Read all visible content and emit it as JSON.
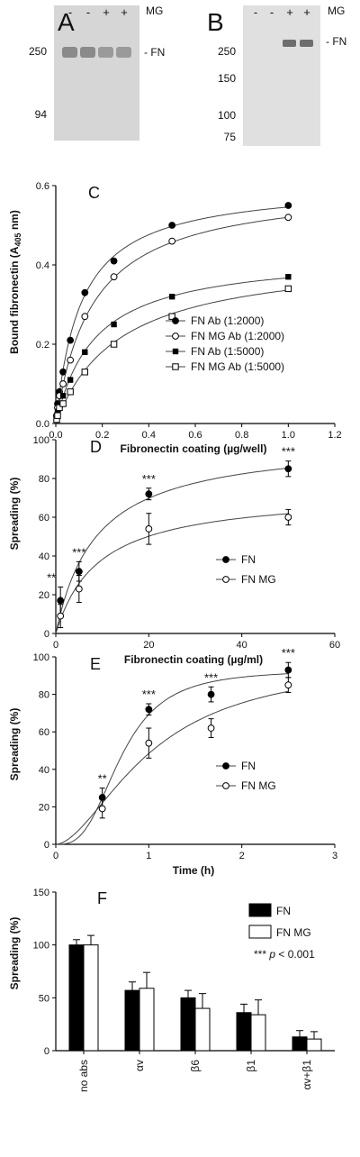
{
  "gels": [
    {
      "panel": "A",
      "lanes": [
        "-",
        "-",
        "+",
        "+"
      ],
      "lane_header": "MG",
      "markers": [
        "250",
        "94"
      ],
      "band_label": "- FN"
    },
    {
      "panel": "B",
      "lanes": [
        "-",
        "-",
        "+",
        "+"
      ],
      "lane_header": "MG",
      "markers": [
        "250",
        "150",
        "100",
        "75"
      ],
      "band_label": "- FN"
    }
  ],
  "chart_data": [
    {
      "panel": "C",
      "type": "line",
      "xlabel": "Fibronectin coating (µg/well)",
      "ylabel_main": "Bound fibronectin (A",
      "ylabel_sub": "405",
      "ylabel_end": " nm)",
      "xlim": [
        0,
        1.2
      ],
      "ylim": [
        0,
        0.6
      ],
      "xticks": [
        "0.0",
        "0.2",
        "0.4",
        "0.6",
        "0.8",
        "1.0",
        "1.2"
      ],
      "yticks": [
        "0.0",
        "0.2",
        "0.4",
        "0.6"
      ],
      "x": [
        0.0039,
        0.0078,
        0.0156,
        0.03125,
        0.0625,
        0.125,
        0.25,
        0.5,
        1.0
      ],
      "series": [
        {
          "name": "FN Ab (1:2000)",
          "marker": "filled-circle",
          "values": [
            0.02,
            0.05,
            0.08,
            0.13,
            0.21,
            0.33,
            0.41,
            0.5,
            0.55
          ]
        },
        {
          "name": "FN MG Ab (1:2000)",
          "marker": "open-circle",
          "values": [
            0.02,
            0.04,
            0.07,
            0.1,
            0.16,
            0.27,
            0.37,
            0.46,
            0.52
          ]
        },
        {
          "name": "FN Ab (1:5000)",
          "marker": "filled-square",
          "values": [
            0.01,
            0.03,
            0.05,
            0.07,
            0.11,
            0.18,
            0.25,
            0.32,
            0.37
          ]
        },
        {
          "name": "FN MG Ab (1:5000)",
          "marker": "open-square",
          "values": [
            0.01,
            0.02,
            0.04,
            0.05,
            0.08,
            0.13,
            0.2,
            0.27,
            0.34
          ]
        }
      ],
      "legend_position": "lower-right"
    },
    {
      "panel": "D",
      "type": "line",
      "xlabel": "Fibronectin coating (µg/ml)",
      "ylabel": "Spreading (%)",
      "xlim": [
        0,
        60
      ],
      "ylim": [
        0,
        100
      ],
      "xticks": [
        "0",
        "20",
        "40",
        "60"
      ],
      "yticks": [
        "0",
        "20",
        "40",
        "60",
        "80",
        "100"
      ],
      "x": [
        1,
        5,
        20,
        50
      ],
      "series": [
        {
          "name": "FN",
          "marker": "filled-circle",
          "values": [
            17,
            32,
            72,
            85
          ],
          "errors": [
            7,
            5,
            3,
            4
          ]
        },
        {
          "name": "FN MG",
          "marker": "open-circle",
          "values": [
            9,
            23,
            54,
            60
          ],
          "errors": [
            6,
            7,
            8,
            4
          ]
        }
      ],
      "annotations": [
        "**",
        "***",
        "***",
        "***"
      ],
      "legend_position": "lower-right"
    },
    {
      "panel": "E",
      "type": "line",
      "xlabel": "Time (h)",
      "ylabel": "Spreading (%)",
      "xlim": [
        0,
        3
      ],
      "ylim": [
        0,
        100
      ],
      "xticks": [
        "0",
        "1",
        "2",
        "3"
      ],
      "yticks": [
        "0",
        "20",
        "40",
        "60",
        "80",
        "100"
      ],
      "x": [
        0.5,
        1.0,
        1.67,
        2.5
      ],
      "series": [
        {
          "name": "FN",
          "marker": "filled-circle",
          "values": [
            25,
            72,
            80,
            93
          ],
          "errors": [
            5,
            3,
            4,
            4
          ]
        },
        {
          "name": "FN MG",
          "marker": "open-circle",
          "values": [
            19,
            54,
            62,
            85
          ],
          "errors": [
            5,
            8,
            5,
            4
          ]
        }
      ],
      "annotations": [
        "**",
        "***",
        "***",
        "***"
      ],
      "legend_position": "lower-right"
    },
    {
      "panel": "F",
      "type": "bar",
      "ylabel": "Spreading (%)",
      "ylim": [
        0,
        150
      ],
      "yticks": [
        "0",
        "50",
        "100",
        "150"
      ],
      "categories": [
        "no abs",
        "αv",
        "β6",
        "β1",
        "αv+β1"
      ],
      "series": [
        {
          "name": "FN",
          "color": "#000000",
          "values": [
            100,
            57,
            50,
            36,
            13
          ],
          "errors": [
            5,
            8,
            7,
            8,
            6
          ]
        },
        {
          "name": "FN MG",
          "color": "#ffffff",
          "values": [
            100,
            59,
            40,
            34,
            11
          ],
          "errors": [
            9,
            15,
            14,
            14,
            7
          ]
        }
      ],
      "note_stars": "***",
      "note_p": "p",
      "note_text": " < 0.001",
      "legend_position": "top-right"
    }
  ]
}
